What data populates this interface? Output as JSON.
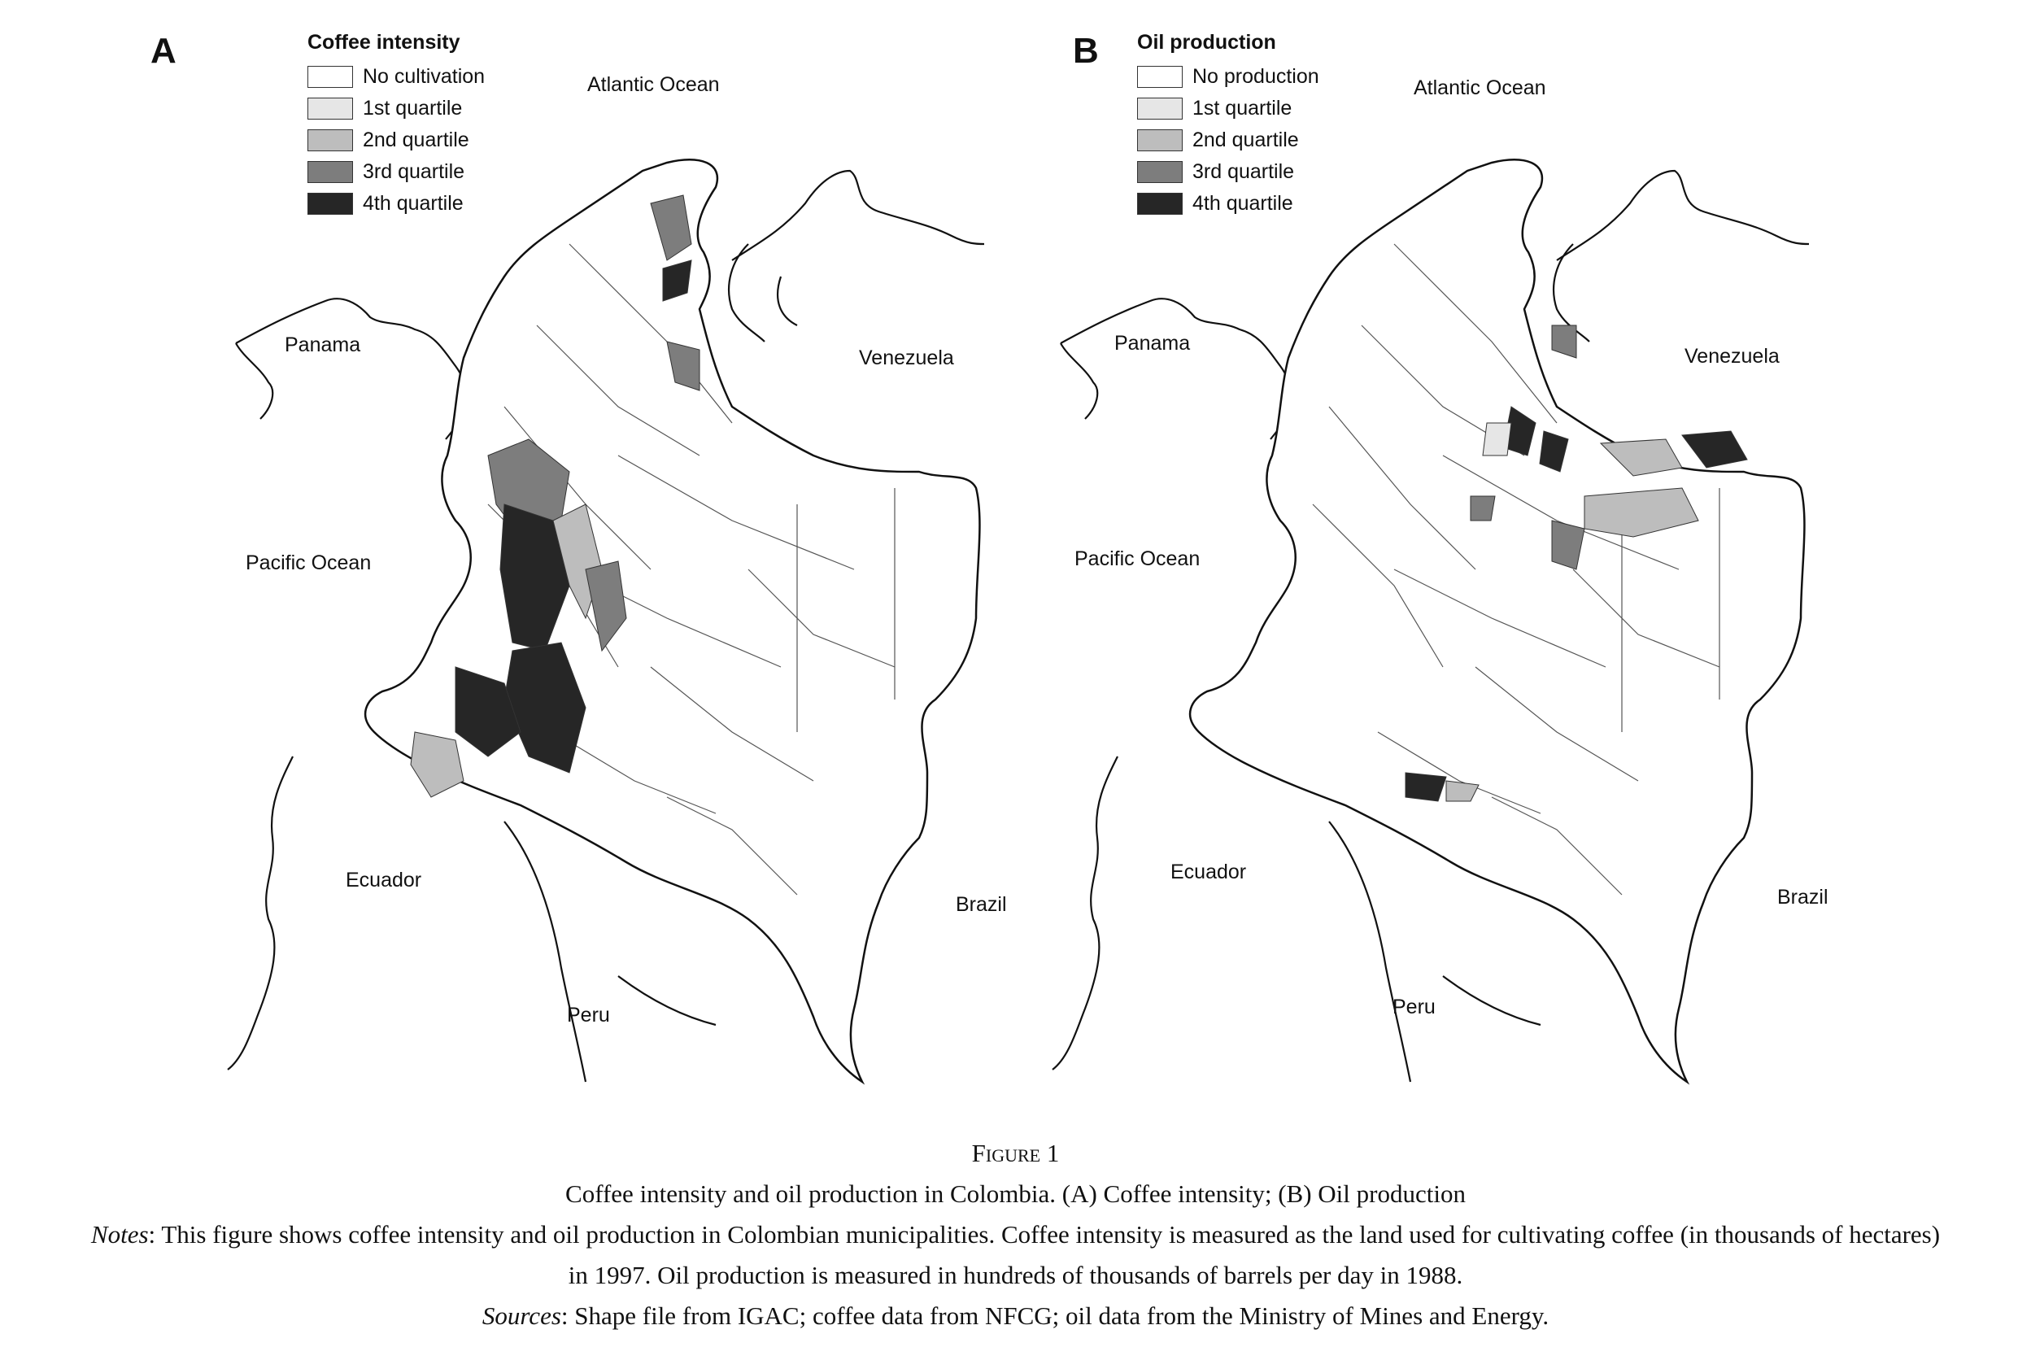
{
  "panels": [
    {
      "letter": "A",
      "legend_title": "Coffee intensity",
      "legend": [
        {
          "label": "No cultivation",
          "color": "#ffffff"
        },
        {
          "label": "1st quartile",
          "color": "#e6e6e6"
        },
        {
          "label": "2nd quartile",
          "color": "#bdbdbd"
        },
        {
          "label": "3rd quartile",
          "color": "#7d7d7d"
        },
        {
          "label": "4th quartile",
          "color": "#262626"
        }
      ],
      "places": {
        "atlantic": "Atlantic Ocean",
        "panama": "Panama",
        "venezuela": "Venezuela",
        "pacific": "Pacific Ocean",
        "ecuador": "Ecuador",
        "brazil": "Brazil",
        "peru": "Peru"
      }
    },
    {
      "letter": "B",
      "legend_title": "Oil production",
      "legend": [
        {
          "label": "No production",
          "color": "#ffffff"
        },
        {
          "label": "1st quartile",
          "color": "#e6e6e6"
        },
        {
          "label": "2nd quartile",
          "color": "#bdbdbd"
        },
        {
          "label": "3rd quartile",
          "color": "#7d7d7d"
        },
        {
          "label": "4th quartile",
          "color": "#262626"
        }
      ],
      "places": {
        "atlantic": "Atlantic Ocean",
        "panama": "Panama",
        "venezuela": "Venezuela",
        "pacific": "Pacific Ocean",
        "ecuador": "Ecuador",
        "brazil": "Brazil",
        "peru": "Peru"
      }
    }
  ],
  "caption": {
    "figure_label": "Figure 1",
    "title": "Coffee intensity and oil production in Colombia. (A) Coffee intensity; (B) Oil production",
    "notes_label": "Notes",
    "notes_text_1": ": This figure shows coffee intensity and oil production in Colombian municipalities. Coffee intensity is measured as the land used for cultivating coffee (in thousands of hectares)",
    "notes_text_2": "in 1997. Oil production is measured in hundreds of thousands of barrels per day in 1988.",
    "sources_label": "Sources",
    "sources_text": ": Shape file from IGAC; coffee data from NFCG; oil data from the Ministry of Mines and Energy."
  }
}
